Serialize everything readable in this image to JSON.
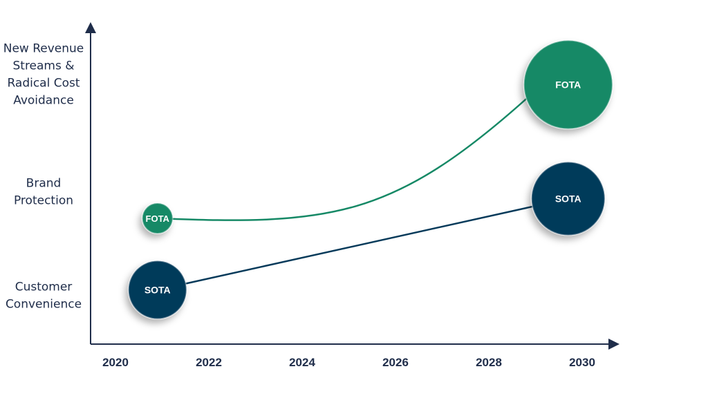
{
  "chart_data": {
    "type": "scatter",
    "title": "",
    "xlabel": "",
    "ylabel": "",
    "x_ticks": [
      "2020",
      "2022",
      "2024",
      "2026",
      "2028",
      "2030"
    ],
    "xlim": [
      2019.5,
      2031.2
    ],
    "y_categories": [
      {
        "value": 1,
        "lines": [
          "Customer",
          "Convenience"
        ]
      },
      {
        "value": 2,
        "lines": [
          "Brand",
          "Protection"
        ]
      },
      {
        "value": 3,
        "lines": [
          "New Revenue",
          "Streams &",
          "Radical Cost",
          "Avoidance"
        ]
      }
    ],
    "ylim": [
      0.5,
      3.6
    ],
    "grid": false,
    "colors": {
      "FOTA": "#168966",
      "SOTA": "#063a5a",
      "axis": "#1f2d4a"
    },
    "series": [
      {
        "name": "FOTA",
        "points": [
          {
            "x": 2020.9,
            "y": 1.74,
            "size": 1,
            "label": "FOTA"
          },
          {
            "x": 2029.7,
            "y": 3.03,
            "size": 3,
            "label": "FOTA"
          }
        ],
        "connector": "curve"
      },
      {
        "name": "SOTA",
        "points": [
          {
            "x": 2020.9,
            "y": 1.05,
            "size": 2,
            "label": "SOTA"
          },
          {
            "x": 2029.7,
            "y": 1.93,
            "size": 2.5,
            "label": "SOTA"
          }
        ],
        "connector": "line"
      }
    ]
  }
}
